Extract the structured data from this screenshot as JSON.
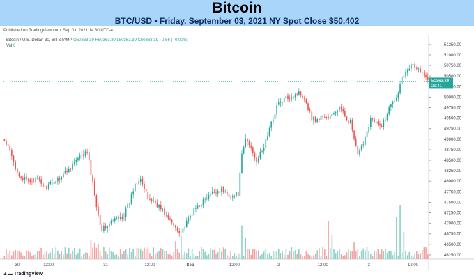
{
  "banner": {
    "title": "Bitcoin",
    "subtitle": "BTC/USD • Friday, September 03, 2021 NY Spot Close $50,402"
  },
  "published": "Published on TradingView.com, Sep 03, 2021 14:30 UTC-4",
  "legend": {
    "symbol": "Bitcoin / U.S. Dollar, 30, BITSTAMP",
    "ohlc": "O50363.39 H50363.39 L50363.39 C50363.39 −0.56 (−0.00%)",
    "vol_label": "Vol",
    "vol_value": "0"
  },
  "footer": {
    "logo": "TradingView"
  },
  "colors": {
    "up": "#26a69a",
    "down": "#ef5350",
    "up_vol": "#8fd1c8",
    "down_vol": "#f4a3a3"
  },
  "chart_data": {
    "type": "candlestick",
    "y_ticks": [
      "51250.00",
      "51000.00",
      "50750.00",
      "50500.00",
      "50250.00",
      "50000.00",
      "49750.00",
      "49500.00",
      "49250.00",
      "49000.00",
      "48750.00",
      "48500.00",
      "48250.00",
      "48000.00",
      "47750.00",
      "47500.00",
      "47250.00",
      "47000.00",
      "46750.00",
      "46500.00",
      "46250.00"
    ],
    "ylim": [
      46150,
      51380
    ],
    "x_ticks": [
      {
        "label": "30",
        "t": 7
      },
      {
        "label": "12:00",
        "t": 24
      },
      {
        "label": "31",
        "t": 55
      },
      {
        "label": "12:00",
        "t": 79
      },
      {
        "label": "Sep",
        "t": 101
      },
      {
        "label": "12:00",
        "t": 125
      },
      {
        "label": "2",
        "t": 149
      },
      {
        "label": "12:00",
        "t": 173
      },
      {
        "label": "3",
        "t": 198
      },
      {
        "label": "12:00",
        "t": 222
      }
    ],
    "last_price": "50363.39",
    "countdown": "29:41",
    "path": [
      [
        0,
        48950
      ],
      [
        3,
        48700
      ],
      [
        6,
        48300
      ],
      [
        10,
        48050
      ],
      [
        14,
        48000
      ],
      [
        18,
        48050
      ],
      [
        22,
        47850
      ],
      [
        26,
        47950
      ],
      [
        30,
        48100
      ],
      [
        34,
        48250
      ],
      [
        38,
        48450
      ],
      [
        42,
        48600
      ],
      [
        45,
        48700
      ],
      [
        47,
        48200
      ],
      [
        49,
        47700
      ],
      [
        51,
        47200
      ],
      [
        53,
        46850
      ],
      [
        56,
        46950
      ],
      [
        59,
        47050
      ],
      [
        62,
        47150
      ],
      [
        65,
        47200
      ],
      [
        68,
        47500
      ],
      [
        71,
        47950
      ],
      [
        74,
        48100
      ],
      [
        76,
        47800
      ],
      [
        78,
        47600
      ],
      [
        82,
        47500
      ],
      [
        86,
        47300
      ],
      [
        90,
        47050
      ],
      [
        93,
        46900
      ],
      [
        96,
        46800
      ],
      [
        99,
        47000
      ],
      [
        102,
        47250
      ],
      [
        106,
        47450
      ],
      [
        110,
        47600
      ],
      [
        114,
        47750
      ],
      [
        118,
        47800
      ],
      [
        121,
        47700
      ],
      [
        124,
        47650
      ],
      [
        127,
        47700
      ],
      [
        129,
        48600
      ],
      [
        131,
        49000
      ],
      [
        134,
        48800
      ],
      [
        137,
        48500
      ],
      [
        140,
        48700
      ],
      [
        143,
        49100
      ],
      [
        146,
        49500
      ],
      [
        148,
        49800
      ],
      [
        151,
        49900
      ],
      [
        154,
        50000
      ],
      [
        157,
        50050
      ],
      [
        160,
        50100
      ],
      [
        163,
        50000
      ],
      [
        165,
        49750
      ],
      [
        167,
        49500
      ],
      [
        170,
        49450
      ],
      [
        173,
        49550
      ],
      [
        176,
        49500
      ],
      [
        179,
        49600
      ],
      [
        182,
        49750
      ],
      [
        184,
        49600
      ],
      [
        186,
        49500
      ],
      [
        188,
        49400
      ],
      [
        190,
        49000
      ],
      [
        192,
        48600
      ],
      [
        194,
        48800
      ],
      [
        197,
        49200
      ],
      [
        199,
        49500
      ],
      [
        201,
        49400
      ],
      [
        204,
        49300
      ],
      [
        207,
        49450
      ],
      [
        209,
        49800
      ],
      [
        211,
        49950
      ],
      [
        213,
        49950
      ],
      [
        215,
        50350
      ],
      [
        217,
        50550
      ],
      [
        219,
        50700
      ],
      [
        222,
        50750
      ],
      [
        225,
        50650
      ],
      [
        228,
        50500
      ],
      [
        230,
        50420
      ]
    ],
    "volume_spikes": [
      {
        "t": 47,
        "h": 0.35
      },
      {
        "t": 49,
        "h": 0.3
      },
      {
        "t": 51,
        "h": 0.28
      },
      {
        "t": 93,
        "h": 0.33
      },
      {
        "t": 96,
        "h": 0.42
      },
      {
        "t": 129,
        "h": 0.62
      },
      {
        "t": 131,
        "h": 0.4
      },
      {
        "t": 176,
        "h": 0.7
      },
      {
        "t": 178,
        "h": 0.45
      },
      {
        "t": 190,
        "h": 0.32
      },
      {
        "t": 213,
        "h": 0.78
      },
      {
        "t": 215,
        "h": 1.0
      },
      {
        "t": 217,
        "h": 0.5
      }
    ]
  }
}
